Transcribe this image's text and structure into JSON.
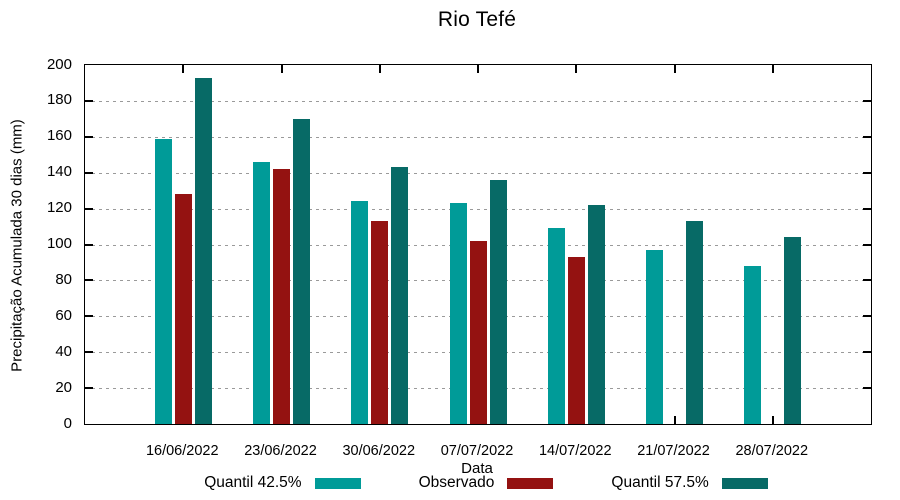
{
  "chart_data": {
    "type": "bar",
    "title": "Rio Tefé",
    "xlabel": "Data",
    "ylabel": "Precipitação Acumulada 30 dias (mm)",
    "categories": [
      "16/06/2022",
      "23/06/2022",
      "30/06/2022",
      "07/07/2022",
      "14/07/2022",
      "21/07/2022",
      "28/07/2022"
    ],
    "series": [
      {
        "name": "Quantil 42.5%",
        "color": "#009B98",
        "values": [
          159,
          146,
          124,
          123,
          109,
          97,
          88
        ]
      },
      {
        "name": "Observado",
        "color": "#941211",
        "values": [
          128,
          142,
          113,
          102,
          93,
          null,
          null
        ]
      },
      {
        "name": "Quantil 57.5%",
        "color": "#076A66",
        "values": [
          193,
          170,
          143,
          136,
          122,
          113,
          104
        ]
      }
    ],
    "ylim": [
      0,
      200
    ],
    "ytick_step": 20,
    "grid": "horizontal-dotted",
    "legend_position": "bottom",
    "axis_color": "#000000",
    "grid_color": "#9a9a9a"
  }
}
